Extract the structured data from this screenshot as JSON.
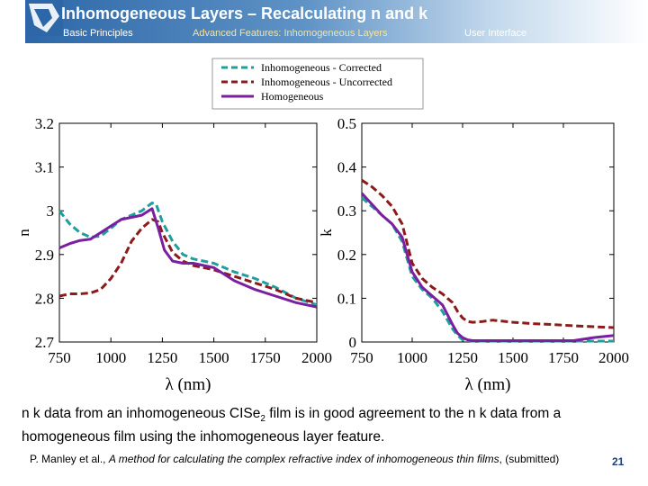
{
  "header": {
    "title": "Inhomogeneous Layers – Recalculating n and k",
    "nav": {
      "basic": "Basic Principles",
      "advanced": "Advanced Features: Inhomogeneous Layers",
      "ui": "User Interface"
    }
  },
  "colors": {
    "corrected": "#1f9e9e",
    "uncorrected": "#8b1a1a",
    "homogeneous": "#7a1fa0",
    "header_blue": "#2d67a8"
  },
  "chart_data": [
    {
      "type": "line",
      "title": "",
      "xlabel": "λ (nm)",
      "ylabel": "n",
      "xlim": [
        750,
        2000
      ],
      "ylim": [
        2.7,
        3.2
      ],
      "xticks": [
        "750",
        "1000",
        "1250",
        "1500",
        "1750",
        "2000"
      ],
      "yticks": [
        "2.7",
        "2.8",
        "2.9",
        "3",
        "3.1",
        "3.2"
      ],
      "series": [
        {
          "name": "Inhomogeneous - Corrected",
          "style": "dashed",
          "color": "#1f9e9e",
          "x": [
            750,
            800,
            850,
            900,
            950,
            1000,
            1050,
            1100,
            1150,
            1200,
            1220,
            1250,
            1300,
            1350,
            1400,
            1500,
            1600,
            1700,
            1800,
            1900,
            2000
          ],
          "y": [
            3.0,
            2.97,
            2.95,
            2.94,
            2.942,
            2.96,
            2.98,
            2.99,
            3.0,
            3.018,
            3.015,
            2.975,
            2.93,
            2.9,
            2.89,
            2.88,
            2.86,
            2.845,
            2.825,
            2.8,
            2.785
          ]
        },
        {
          "name": "Inhomogeneous - Uncorrected",
          "style": "dashed",
          "color": "#8b1a1a",
          "x": [
            750,
            800,
            850,
            900,
            950,
            1000,
            1050,
            1100,
            1150,
            1200,
            1230,
            1250,
            1300,
            1350,
            1400,
            1500,
            1600,
            1700,
            1800,
            1900,
            2000
          ],
          "y": [
            2.805,
            2.81,
            2.81,
            2.812,
            2.82,
            2.845,
            2.88,
            2.93,
            2.96,
            2.98,
            2.975,
            2.95,
            2.905,
            2.885,
            2.875,
            2.865,
            2.85,
            2.835,
            2.82,
            2.8,
            2.79
          ]
        },
        {
          "name": "Homogeneous",
          "style": "solid",
          "color": "#7a1fa0",
          "x": [
            750,
            800,
            850,
            900,
            950,
            1000,
            1050,
            1100,
            1150,
            1200,
            1230,
            1260,
            1300,
            1350,
            1400,
            1500,
            1600,
            1700,
            1800,
            1900,
            2000
          ],
          "y": [
            2.915,
            2.925,
            2.932,
            2.935,
            2.95,
            2.965,
            2.98,
            2.985,
            2.99,
            3.005,
            2.96,
            2.91,
            2.885,
            2.88,
            2.88,
            2.87,
            2.84,
            2.82,
            2.805,
            2.79,
            2.78
          ]
        }
      ]
    },
    {
      "type": "line",
      "title": "",
      "xlabel": "λ (nm)",
      "ylabel": "k",
      "xlim": [
        750,
        2000
      ],
      "ylim": [
        0,
        0.5
      ],
      "xticks": [
        "750",
        "1000",
        "1250",
        "1500",
        "1750",
        "2000"
      ],
      "yticks": [
        "0",
        "0.1",
        "0.2",
        "0.3",
        "0.4",
        "0.5"
      ],
      "series": [
        {
          "name": "Inhomogeneous - Corrected",
          "style": "dashed",
          "color": "#1f9e9e",
          "x": [
            750,
            800,
            850,
            900,
            950,
            1000,
            1050,
            1100,
            1150,
            1200,
            1225,
            1250,
            1275,
            1300,
            1350,
            1400,
            1500,
            1600,
            1700,
            1800,
            1900,
            2000
          ],
          "y": [
            0.33,
            0.31,
            0.29,
            0.27,
            0.23,
            0.15,
            0.12,
            0.1,
            0.07,
            0.03,
            0.015,
            0.005,
            0.003,
            0.002,
            0.002,
            0.002,
            0.002,
            0.002,
            0.002,
            0.002,
            0.002,
            0.002
          ]
        },
        {
          "name": "Inhomogeneous - Uncorrected",
          "style": "dashed",
          "color": "#8b1a1a",
          "x": [
            750,
            800,
            850,
            900,
            950,
            1000,
            1050,
            1100,
            1150,
            1200,
            1225,
            1250,
            1275,
            1300,
            1350,
            1400,
            1500,
            1600,
            1700,
            1800,
            1900,
            2000
          ],
          "y": [
            0.37,
            0.355,
            0.335,
            0.31,
            0.27,
            0.18,
            0.145,
            0.125,
            0.11,
            0.09,
            0.07,
            0.055,
            0.047,
            0.045,
            0.047,
            0.05,
            0.045,
            0.042,
            0.04,
            0.037,
            0.035,
            0.033
          ]
        },
        {
          "name": "Homogeneous",
          "style": "solid",
          "color": "#7a1fa0",
          "x": [
            750,
            800,
            850,
            900,
            950,
            1000,
            1050,
            1100,
            1150,
            1200,
            1225,
            1250,
            1275,
            1300,
            1350,
            1400,
            1500,
            1600,
            1700,
            1800,
            1900,
            2000
          ],
          "y": [
            0.34,
            0.315,
            0.29,
            0.27,
            0.24,
            0.16,
            0.125,
            0.105,
            0.085,
            0.04,
            0.02,
            0.01,
            0.005,
            0.003,
            0.003,
            0.003,
            0.003,
            0.003,
            0.003,
            0.003,
            0.01,
            0.015
          ]
        }
      ]
    }
  ],
  "legend": {
    "items": [
      {
        "label": "Inhomogeneous - Corrected",
        "style": "dashed",
        "color": "#1f9e9e"
      },
      {
        "label": "Inhomogeneous - Uncorrected",
        "style": "dashed",
        "color": "#8b1a1a"
      },
      {
        "label": "Homogeneous",
        "style": "solid",
        "color": "#7a1fa0"
      }
    ]
  },
  "body": {
    "text_a": "n k data from an inhomogeneous CISe",
    "text_sub": "2",
    "text_b": " film is in good agreement to the n k data from a homogeneous film using the inhomogeneous layer feature."
  },
  "citation": {
    "authors": "P. Manley et al., ",
    "title": "A method for calculating the complex refractive index of inhomogeneous thin films",
    "suffix": ", (submitted)"
  },
  "page": {
    "number": "21"
  }
}
